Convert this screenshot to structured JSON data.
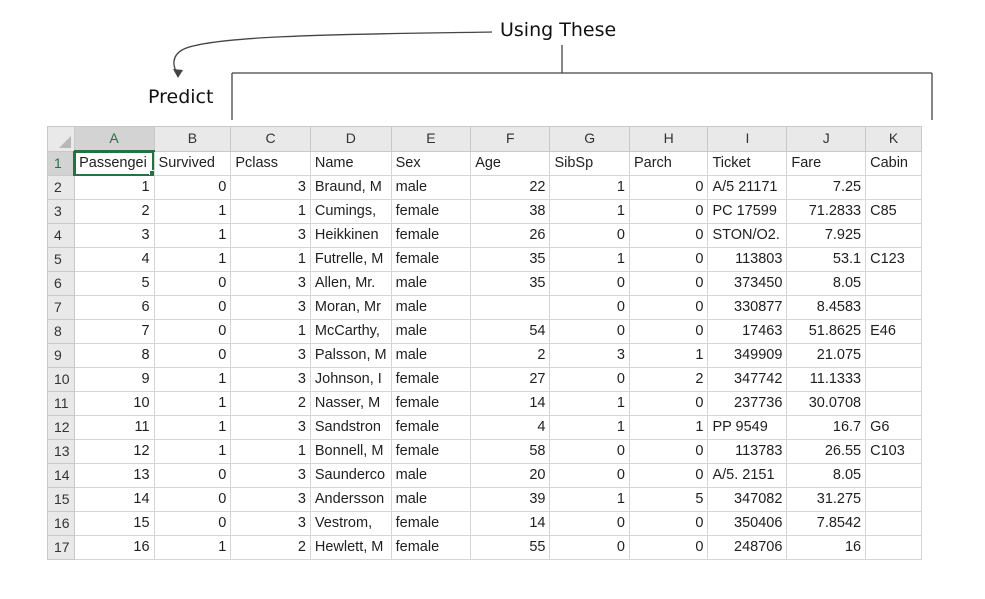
{
  "annotations": {
    "using_these": "Using These",
    "predict": "Predict"
  },
  "sheet": {
    "columns": [
      "A",
      "B",
      "C",
      "D",
      "E",
      "F",
      "G",
      "H",
      "I",
      "J",
      "K"
    ],
    "header_row": [
      "Passengei",
      "Survived",
      "Pclass",
      "Name",
      "Sex",
      "Age",
      "SibSp",
      "Parch",
      "Ticket",
      "Fare",
      "Cabin"
    ],
    "rows": [
      {
        "n": "2",
        "cells": [
          "1",
          "0",
          "3",
          "Braund, M",
          "male",
          "22",
          "1",
          "0",
          "A/5 21171",
          "7.25",
          ""
        ]
      },
      {
        "n": "3",
        "cells": [
          "2",
          "1",
          "1",
          "Cumings,",
          "female",
          "38",
          "1",
          "0",
          "PC 17599",
          "71.2833",
          "C85"
        ]
      },
      {
        "n": "4",
        "cells": [
          "3",
          "1",
          "3",
          "Heikkinen",
          "female",
          "26",
          "0",
          "0",
          "STON/O2.",
          "7.925",
          ""
        ]
      },
      {
        "n": "5",
        "cells": [
          "4",
          "1",
          "1",
          "Futrelle, M",
          "female",
          "35",
          "1",
          "0",
          "113803",
          "53.1",
          "C123"
        ]
      },
      {
        "n": "6",
        "cells": [
          "5",
          "0",
          "3",
          "Allen, Mr.",
          "male",
          "35",
          "0",
          "0",
          "373450",
          "8.05",
          ""
        ]
      },
      {
        "n": "7",
        "cells": [
          "6",
          "0",
          "3",
          "Moran, Mr",
          "male",
          "",
          "0",
          "0",
          "330877",
          "8.4583",
          ""
        ]
      },
      {
        "n": "8",
        "cells": [
          "7",
          "0",
          "1",
          "McCarthy,",
          "male",
          "54",
          "0",
          "0",
          "17463",
          "51.8625",
          "E46"
        ]
      },
      {
        "n": "9",
        "cells": [
          "8",
          "0",
          "3",
          "Palsson, M",
          "male",
          "2",
          "3",
          "1",
          "349909",
          "21.075",
          ""
        ]
      },
      {
        "n": "10",
        "cells": [
          "9",
          "1",
          "3",
          "Johnson, I",
          "female",
          "27",
          "0",
          "2",
          "347742",
          "11.1333",
          ""
        ]
      },
      {
        "n": "11",
        "cells": [
          "10",
          "1",
          "2",
          "Nasser, M",
          "female",
          "14",
          "1",
          "0",
          "237736",
          "30.0708",
          ""
        ]
      },
      {
        "n": "12",
        "cells": [
          "11",
          "1",
          "3",
          "Sandstron",
          "female",
          "4",
          "1",
          "1",
          "PP 9549",
          "16.7",
          "G6"
        ]
      },
      {
        "n": "13",
        "cells": [
          "12",
          "1",
          "1",
          "Bonnell, M",
          "female",
          "58",
          "0",
          "0",
          "113783",
          "26.55",
          "C103"
        ]
      },
      {
        "n": "14",
        "cells": [
          "13",
          "0",
          "3",
          "Saunderco",
          "male",
          "20",
          "0",
          "0",
          "A/5. 2151",
          "8.05",
          ""
        ]
      },
      {
        "n": "15",
        "cells": [
          "14",
          "0",
          "3",
          "Andersson",
          "male",
          "39",
          "1",
          "5",
          "347082",
          "31.275",
          ""
        ]
      },
      {
        "n": "16",
        "cells": [
          "15",
          "0",
          "3",
          "Vestrom,",
          "female",
          "14",
          "0",
          "0",
          "350406",
          "7.8542",
          ""
        ]
      },
      {
        "n": "17",
        "cells": [
          "16",
          "1",
          "2",
          "Hewlett, M",
          "female",
          "55",
          "0",
          "0",
          "248706",
          "16",
          ""
        ]
      }
    ]
  },
  "colors": {
    "selection": "#217346",
    "header_bg": "#e9e9e9"
  }
}
